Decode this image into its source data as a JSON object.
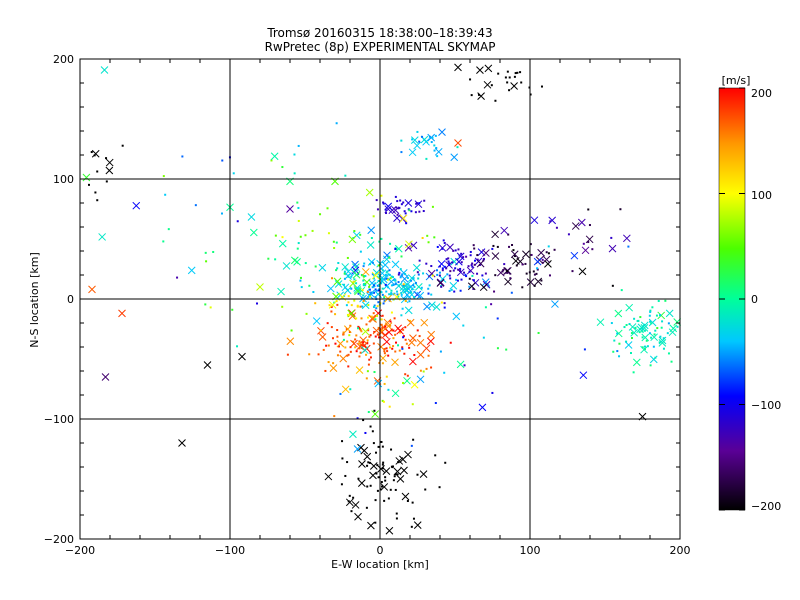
{
  "chart_data": {
    "type": "scatter",
    "title": "Tromsø 20160315 18:38:00–18:39:43",
    "subtitle": "RwPretec (8p) EXPERIMENTAL SKYMAP",
    "xlabel": "E-W location [km]",
    "ylabel": "N-S location [km]",
    "xlim": [
      -200,
      200
    ],
    "ylim": [
      -200,
      200
    ],
    "xticks": [
      "−200",
      "−100",
      "0",
      "100",
      "200"
    ],
    "yticks": [
      "−200",
      "−100",
      "0",
      "100",
      "200"
    ],
    "grid": true,
    "colorbar": {
      "unit": "[m/s]",
      "range": [
        -200,
        200
      ],
      "ticks": [
        "−200",
        "−100",
        "0",
        "100",
        "200"
      ]
    },
    "clusters": [
      {
        "cx": -5,
        "cy": -35,
        "sx": 18,
        "sy": 14,
        "n": 170,
        "v": 170,
        "sv": 25
      },
      {
        "cx": 5,
        "cy": 12,
        "sx": 20,
        "sy": 10,
        "n": 210,
        "v": -40,
        "sv": 18
      },
      {
        "cx": 50,
        "cy": 28,
        "sx": 14,
        "sy": 11,
        "n": 80,
        "v": -115,
        "sv": 15
      },
      {
        "cx": 90,
        "cy": 25,
        "sx": 15,
        "sy": 12,
        "n": 60,
        "v": -175,
        "sv": 15
      },
      {
        "cx": 15,
        "cy": 75,
        "sx": 8,
        "sy": 4,
        "n": 35,
        "v": -115,
        "sv": 10
      },
      {
        "cx": 180,
        "cy": -25,
        "sx": 14,
        "sy": 14,
        "n": 90,
        "v": -10,
        "sv": 20
      },
      {
        "cx": 0,
        "cy": -150,
        "sx": 18,
        "sy": 20,
        "n": 90,
        "v": -200,
        "sv": 0
      },
      {
        "cx": 85,
        "cy": 185,
        "sx": 15,
        "sy": 10,
        "n": 25,
        "v": -200,
        "sv": 0
      },
      {
        "cx": 30,
        "cy": 130,
        "sx": 8,
        "sy": 8,
        "n": 25,
        "v": -40,
        "sv": 12
      },
      {
        "cx": -25,
        "cy": 40,
        "sx": 30,
        "sy": 30,
        "n": 90,
        "v": 20,
        "sv": 40
      },
      {
        "cx": -10,
        "cy": 0,
        "sx": 12,
        "sy": 12,
        "n": 40,
        "v": 100,
        "sv": 30
      },
      {
        "cx": 0,
        "cy": -80,
        "sx": 20,
        "sy": 15,
        "n": 25,
        "v": 30,
        "sv": 50
      },
      {
        "cx": 130,
        "cy": 45,
        "sx": 25,
        "sy": 15,
        "n": 25,
        "v": -120,
        "sv": 40
      },
      {
        "cx": -120,
        "cy": 60,
        "sx": 50,
        "sy": 50,
        "n": 35,
        "v": -20,
        "sv": 60
      },
      {
        "cx": -185,
        "cy": 110,
        "sx": 10,
        "sy": 15,
        "n": 12,
        "v": -200,
        "sv": 0
      },
      {
        "cx": 60,
        "cy": -50,
        "sx": 40,
        "sy": 30,
        "n": 25,
        "v": -60,
        "sv": 40
      }
    ],
    "points": [
      {
        "x": -192,
        "y": 8,
        "v": 170,
        "m": "x"
      },
      {
        "x": -172,
        "y": -12,
        "v": 180,
        "m": "x"
      },
      {
        "x": -183,
        "y": -65,
        "v": -160,
        "m": "x"
      },
      {
        "x": -115,
        "y": -55,
        "v": -200,
        "m": "x"
      },
      {
        "x": -132,
        "y": -120,
        "v": -200,
        "m": "x"
      },
      {
        "x": -92,
        "y": -48,
        "v": -200,
        "m": "x"
      },
      {
        "x": 175,
        "y": -98,
        "v": -200,
        "m": "x"
      },
      {
        "x": 52,
        "y": 130,
        "v": 175,
        "m": "x"
      },
      {
        "x": 52,
        "y": 193,
        "v": -200,
        "m": "x"
      },
      {
        "x": -30,
        "y": 98,
        "v": 45,
        "m": "x"
      },
      {
        "x": -60,
        "y": 98,
        "v": 10,
        "m": "x"
      },
      {
        "x": -80,
        "y": 10,
        "v": 80,
        "m": "x"
      },
      {
        "x": -60,
        "y": 75,
        "v": -140,
        "m": "x"
      },
      {
        "x": -15,
        "y": -125,
        "v": -50,
        "m": "x"
      },
      {
        "x": 155,
        "y": 42,
        "v": -130,
        "m": "x"
      },
      {
        "x": 135,
        "y": 23,
        "v": -200,
        "m": "x"
      }
    ]
  }
}
